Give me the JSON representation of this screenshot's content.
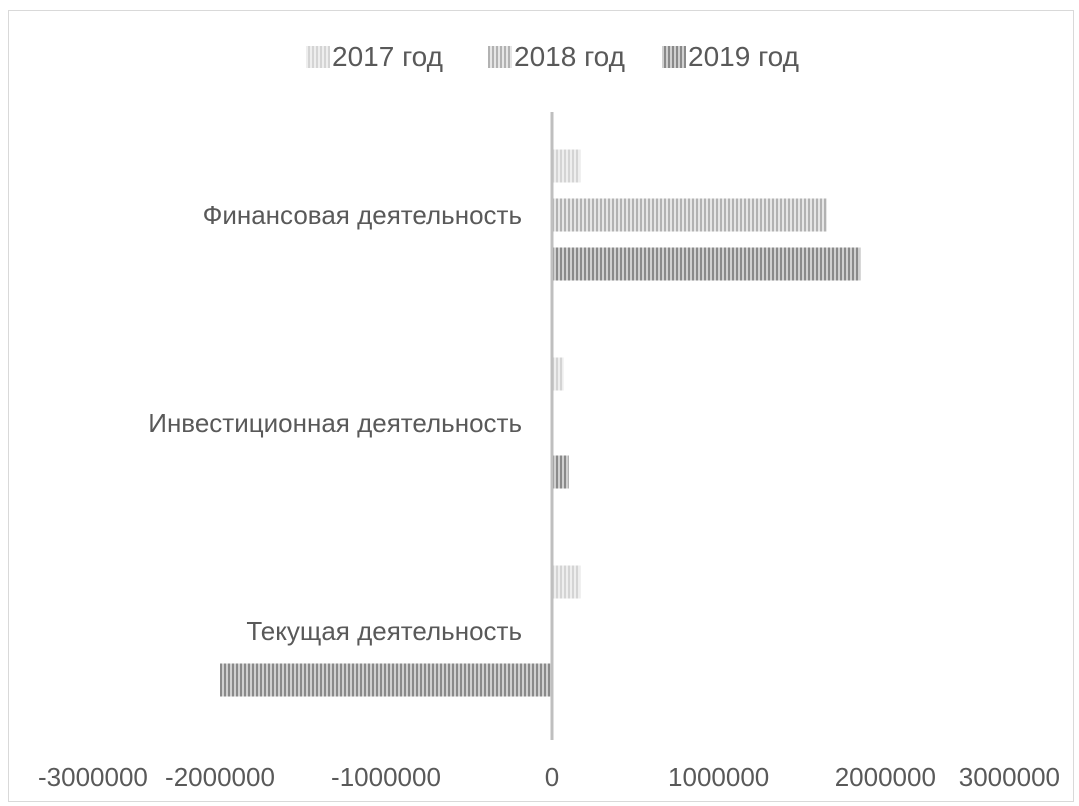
{
  "chart_data": {
    "type": "bar",
    "orientation": "horizontal",
    "title": "",
    "xlabel": "",
    "ylabel": "",
    "categories": [
      "Текущая деятельность",
      "Инвестиционная деятельность",
      "Финансовая деятельность"
    ],
    "series": [
      {
        "name": "2017 год",
        "values": [
          170000,
          70000,
          170000
        ],
        "color": "#d4d4d4",
        "stripe": "#eeeeee"
      },
      {
        "name": "2018 год",
        "values": [
          0,
          0,
          1650000
        ],
        "color": "#b2b2b2",
        "stripe": "#e6e6e6"
      },
      {
        "name": "2019 год",
        "values": [
          -2000000,
          100000,
          1850000
        ],
        "color": "#8a8a8a",
        "stripe": "#d0d0d0"
      }
    ],
    "xlim": [
      -3000000,
      3000000
    ],
    "xticks": [
      -3000000,
      -2000000,
      -1000000,
      0,
      1000000,
      2000000,
      3000000
    ],
    "xtick_labels": [
      "-3000000",
      "-2000000",
      "-1000000",
      "0",
      "1000000",
      "2000000",
      "3000000"
    ],
    "grid": false,
    "legend_position": "top"
  }
}
